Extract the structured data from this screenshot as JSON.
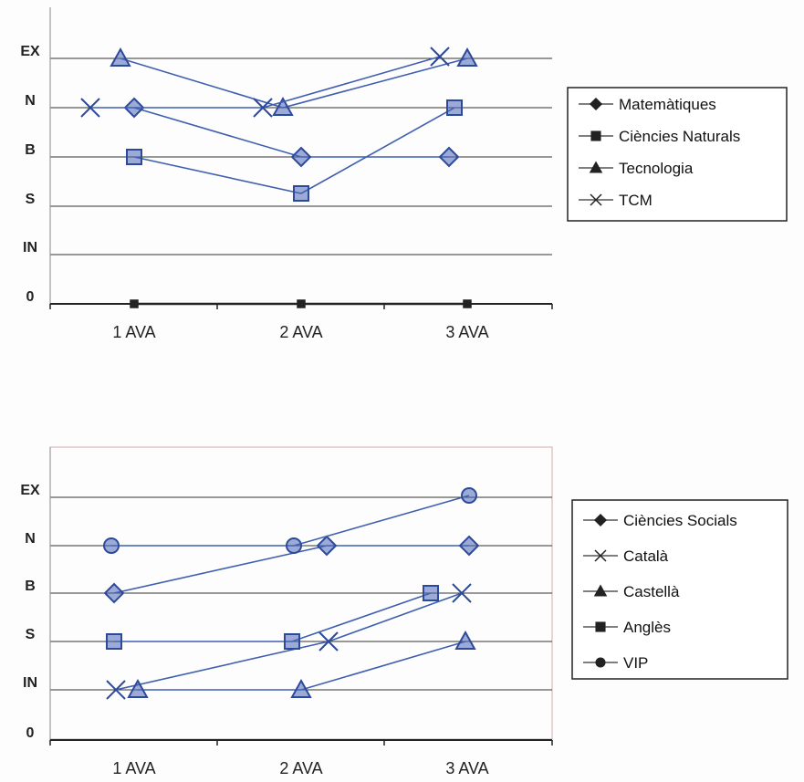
{
  "chart_data": [
    {
      "type": "line",
      "title": "",
      "xlabel": "",
      "ylabel": "",
      "categories": [
        "1 AVA",
        "2 AVA",
        "3 AVA"
      ],
      "y_levels": [
        "0",
        "IN",
        "S",
        "B",
        "N",
        "EX"
      ],
      "ylim": [
        0,
        5
      ],
      "grid": true,
      "legend_position": "right",
      "series": [
        {
          "name": "Matemàtiques",
          "values": [
            4,
            3,
            3
          ],
          "marker": "diamond"
        },
        {
          "name": "Ciències Naturals",
          "values": [
            3,
            2,
            4
          ],
          "marker": "square"
        },
        {
          "name": "Tecnologia",
          "values": [
            5,
            4,
            5
          ],
          "marker": "triangle"
        },
        {
          "name": "TCM",
          "values": [
            4,
            4,
            5
          ],
          "marker": "x"
        },
        {
          "name": "",
          "values": [
            0,
            0,
            0
          ],
          "marker": "square"
        }
      ]
    },
    {
      "type": "line",
      "title": "",
      "xlabel": "",
      "ylabel": "",
      "categories": [
        "1 AVA",
        "2 AVA",
        "3 AVA"
      ],
      "y_levels": [
        "0",
        "IN",
        "S",
        "B",
        "N",
        "EX"
      ],
      "ylim": [
        0,
        5
      ],
      "grid": true,
      "legend_position": "right",
      "series": [
        {
          "name": "Ciències Socials",
          "values": [
            3,
            4,
            4
          ],
          "marker": "diamond"
        },
        {
          "name": "Català",
          "values": [
            1,
            2,
            3
          ],
          "marker": "x"
        },
        {
          "name": "Castellà",
          "values": [
            1,
            1,
            2
          ],
          "marker": "triangle"
        },
        {
          "name": "Anglès",
          "values": [
            2,
            2,
            3
          ],
          "marker": "square"
        },
        {
          "name": "VIP",
          "values": [
            4,
            4,
            5
          ],
          "marker": "circle"
        }
      ]
    }
  ],
  "colors": {
    "line": "#3f5fb0",
    "marker": "#4a66b8",
    "grid": "#333333",
    "legend_line": "#555555",
    "text": "#222222"
  }
}
